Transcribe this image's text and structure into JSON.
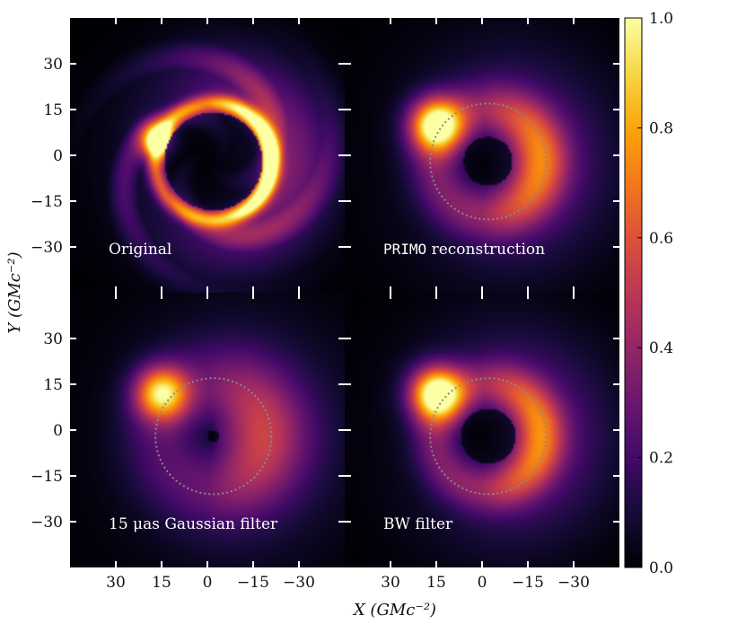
{
  "chart_data": {
    "type": "heatmap",
    "layout": "2x2 image grid with shared colorbar",
    "xlabel": "X (GMc⁻²)",
    "ylabel": "Y (GMc⁻²)",
    "x_ticks": [
      30,
      15,
      0,
      -15,
      -30
    ],
    "x_tick_labels": [
      "30",
      "15",
      "0",
      "−15",
      "−30"
    ],
    "y_ticks": [
      30,
      15,
      0,
      -15,
      -30
    ],
    "y_tick_labels": [
      "30",
      "15",
      "0",
      "−15",
      "−30"
    ],
    "xlim": [
      45,
      -45
    ],
    "ylim": [
      -45,
      45
    ],
    "x_axis_inverted": true,
    "colormap": "inferno",
    "colorbar": {
      "range": [
        0.0,
        1.0
      ],
      "ticks": [
        0.0,
        0.2,
        0.4,
        0.6,
        0.8,
        1.0
      ],
      "tick_labels": [
        "0.0",
        "0.2",
        "0.4",
        "0.6",
        "0.8",
        "1.0"
      ]
    },
    "reference_circle": {
      "center_x": -2,
      "center_y": -2,
      "radius": 19,
      "style": "dotted",
      "color": "#8a8a8a"
    },
    "panels": [
      {
        "id": "original",
        "label": "Original",
        "label_style": "serif",
        "ring": {
          "center_x": -2,
          "center_y": -2,
          "radius": 19,
          "width": 3,
          "peak": 1.0
        },
        "hotspot": {
          "x": 16,
          "y": 5,
          "peak": 0.95
        },
        "diffuse": 0.35,
        "show_circle": false
      },
      {
        "id": "primo",
        "label": "PRIMO reconstruction",
        "label_mono_part": "PRIMO",
        "label_rest": " reconstruction",
        "ring": {
          "center_x": -2,
          "center_y": -2,
          "radius": 17,
          "width": 9,
          "peak": 0.55
        },
        "hotspot": {
          "x": 15,
          "y": 10,
          "peak": 0.95
        },
        "diffuse": 0.2,
        "show_circle": true
      },
      {
        "id": "gaussian",
        "label": "15 μas Gaussian filter",
        "label_style": "serif",
        "ring": {
          "center_x": -2,
          "center_y": -2,
          "radius": 16,
          "width": 14,
          "peak": 0.4
        },
        "hotspot": {
          "x": 15,
          "y": 12,
          "peak": 0.8
        },
        "diffuse": 0.15,
        "show_circle": true
      },
      {
        "id": "bw",
        "label": "BW filter",
        "label_style": "serif",
        "ring": {
          "center_x": -2,
          "center_y": -2,
          "radius": 17,
          "width": 8,
          "peak": 0.55
        },
        "hotspot": {
          "x": 15,
          "y": 12,
          "peak": 1.0
        },
        "diffuse": 0.22,
        "show_circle": true
      }
    ]
  }
}
